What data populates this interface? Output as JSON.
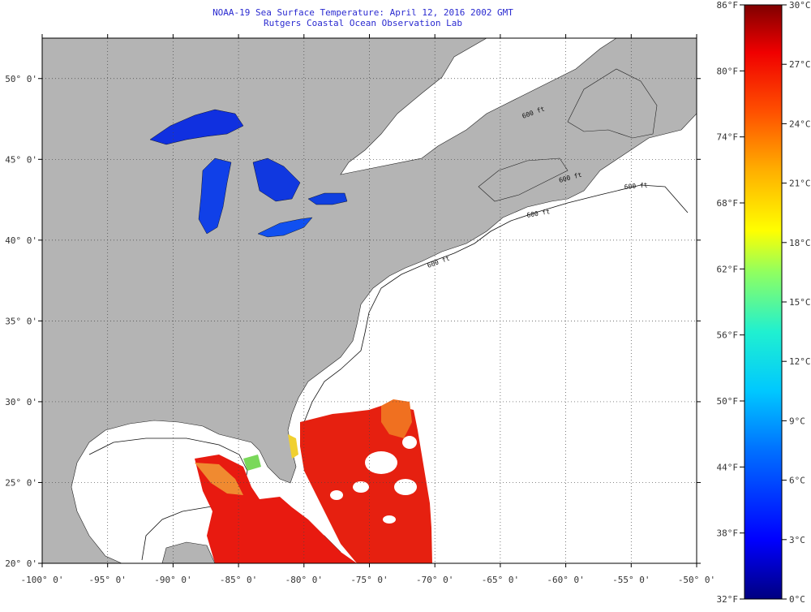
{
  "header": {
    "title": "NOAA-19 Sea Surface Temperature:  April 12, 2016 2002 GMT",
    "subtitle": "Rutgers Coastal Ocean Observation Lab"
  },
  "map": {
    "lon_ticks": [
      "-100° 0'",
      "-95° 0'",
      "-90° 0'",
      "-85° 0'",
      "-80° 0'",
      "-75° 0'",
      "-70° 0'",
      "-65° 0'",
      "-60° 0'",
      "-55° 0'",
      "-50° 0'"
    ],
    "lat_ticks": [
      "50° 0'",
      "45° 0'",
      "40° 0'",
      "35° 0'",
      "30° 0'",
      "25° 0'",
      "20° 0'"
    ],
    "lon_range": [
      -100,
      -50
    ],
    "lat_range": [
      20,
      52.5
    ],
    "land_color": "#b4b4b4",
    "no_data_color": "#ffffff",
    "grid": "dotted",
    "isobath_labels": [
      "600 ft",
      "600 ft",
      "600 ft",
      "600 ft",
      "600 ft"
    ]
  },
  "colorbar": {
    "fahrenheit_labels": [
      "86°F",
      "80°F",
      "74°F",
      "68°F",
      "62°F",
      "56°F",
      "50°F",
      "44°F",
      "38°F",
      "32°F"
    ],
    "celsius_labels": [
      "30°C",
      "27°C",
      "24°C",
      "21°C",
      "18°C",
      "15°C",
      "12°C",
      "9°C",
      "6°C",
      "3°C",
      "0°C"
    ],
    "fahrenheit_range": [
      32,
      86
    ],
    "celsius_range": [
      0,
      30
    ],
    "colors": [
      "#000080",
      "#0000ff",
      "#0080ff",
      "#00e0ff",
      "#40ffb0",
      "#b0ff40",
      "#ffff00",
      "#ffb000",
      "#ff6000",
      "#ff0000",
      "#800000"
    ]
  }
}
